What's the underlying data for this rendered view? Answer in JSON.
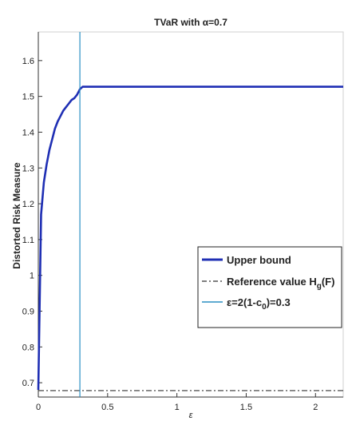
{
  "chart_data": {
    "type": "line",
    "title": "TVaR with α=0.7",
    "xlabel": "ε",
    "ylabel": "Distorted Risk Measure",
    "xlim": [
      0,
      2.2
    ],
    "ylim": [
      0.66,
      1.68
    ],
    "xticks": [
      "0",
      "0.5",
      "1",
      "1.5",
      "2"
    ],
    "yticks": [
      "0.7",
      "0.8",
      "0.9",
      "1",
      "1.1",
      "1.2",
      "1.3",
      "1.4",
      "1.5",
      "1.6"
    ],
    "legend_position": "center-right",
    "legend": {
      "upper": "Upper bound",
      "ref_prefix": "Reference value H",
      "ref_sub": "g",
      "ref_suffix": "(F)",
      "eps_prefix": "ε=2(1-c",
      "eps_sub": "0",
      "eps_suffix": ")=0.3"
    },
    "series": [
      {
        "key": "upper_bound",
        "color": "#1f2fb4",
        "style": "solid",
        "x": [
          0,
          0.02,
          0.04,
          0.06,
          0.08,
          0.1,
          0.12,
          0.14,
          0.16,
          0.18,
          0.2,
          0.22,
          0.24,
          0.26,
          0.28,
          0.3,
          0.32,
          2.2
        ],
        "y": [
          0.68,
          1.17,
          1.26,
          1.31,
          1.35,
          1.38,
          1.41,
          1.43,
          1.445,
          1.46,
          1.47,
          1.48,
          1.49,
          1.495,
          1.505,
          1.52,
          1.527,
          1.527
        ]
      },
      {
        "key": "reference_value",
        "color": "#333333",
        "style": "dashdot",
        "x": [
          0,
          2.2
        ],
        "y": [
          0.678,
          0.678
        ]
      },
      {
        "key": "epsilon_line",
        "color": "#2a8fc4",
        "style": "solid",
        "orientation": "vertical",
        "x": [
          0.3,
          0.3
        ],
        "y": [
          0.66,
          1.68
        ]
      }
    ]
  }
}
